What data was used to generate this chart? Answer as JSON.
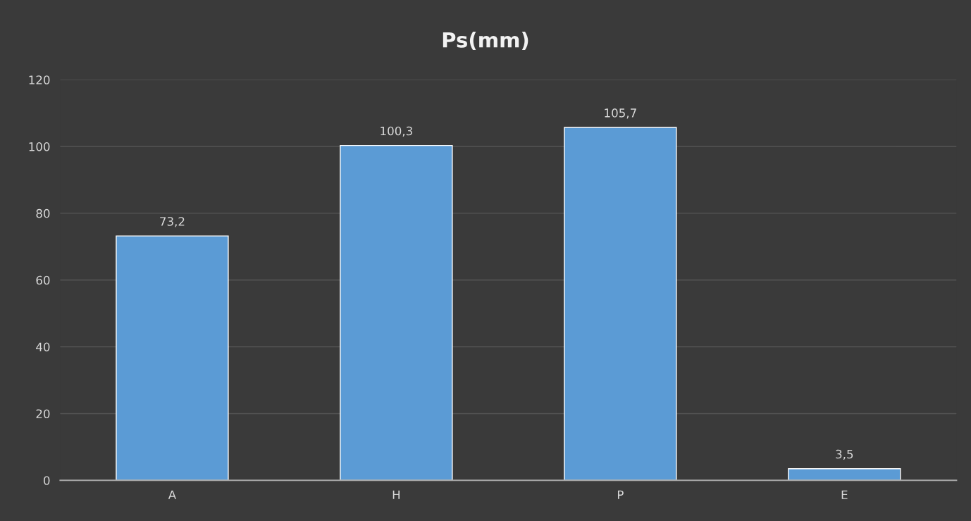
{
  "chart_data": {
    "type": "bar",
    "title": "Ps(mm)",
    "categories": [
      "A",
      "H",
      "P",
      "E"
    ],
    "values": [
      73.2,
      100.3,
      105.7,
      3.5
    ],
    "value_labels": [
      "73,2",
      "100,3",
      "105,7",
      "3,5"
    ],
    "color": "#5b9bd5",
    "ylim": [
      0,
      120
    ],
    "yticks": [
      0,
      20,
      40,
      60,
      80,
      100,
      120
    ],
    "grid": "y"
  }
}
